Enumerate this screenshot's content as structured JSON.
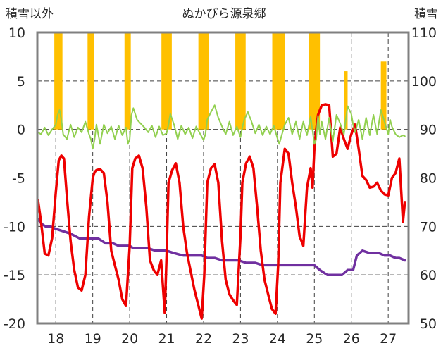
{
  "chart_data": {
    "type": "line+bar",
    "title": "ぬかびら源泉郷",
    "left_axis_label": "積雪以外",
    "right_axis_label": "積雪",
    "x_tick_labels": [
      "18",
      "19",
      "20",
      "21",
      "22",
      "23",
      "24",
      "25",
      "26",
      "27"
    ],
    "xlim": [
      17.5,
      27.55
    ],
    "left_ylim": [
      -20,
      10
    ],
    "left_ticks": [
      10,
      5,
      0,
      -5,
      -10,
      -15,
      -20
    ],
    "right_ylim": [
      50,
      110
    ],
    "right_ticks": [
      110,
      100,
      90,
      80,
      70,
      60,
      50
    ],
    "colors": {
      "temperature": "#ee0000",
      "snow_depth": "#7030a0",
      "precipitation": "#ffc000",
      "wind": "#92d050"
    },
    "series": [
      {
        "key": "temperature",
        "axis": "left",
        "x": [
          17.52,
          17.6,
          17.7,
          17.8,
          17.9,
          18.0,
          18.08,
          18.15,
          18.22,
          18.3,
          18.4,
          18.5,
          18.6,
          18.7,
          18.8,
          18.9,
          19.0,
          19.05,
          19.1,
          19.2,
          19.3,
          19.4,
          19.5,
          19.6,
          19.7,
          19.8,
          19.9,
          20.0,
          20.07,
          20.15,
          20.25,
          20.35,
          20.45,
          20.55,
          20.65,
          20.75,
          20.85,
          20.95,
          21.0,
          21.05,
          21.15,
          21.25,
          21.35,
          21.45,
          21.55,
          21.65,
          21.75,
          21.85,
          21.95,
          22.02,
          22.1,
          22.2,
          22.3,
          22.4,
          22.5,
          22.6,
          22.7,
          22.8,
          22.9,
          23.0,
          23.05,
          23.15,
          23.25,
          23.35,
          23.45,
          23.55,
          23.65,
          23.75,
          23.85,
          23.95,
          24.02,
          24.08,
          24.2,
          24.3,
          24.4,
          24.5,
          24.6,
          24.7,
          24.8,
          24.9,
          24.95,
          25.0,
          25.05,
          25.1,
          25.2,
          25.3,
          25.4,
          25.5,
          25.6,
          25.7,
          25.8,
          25.9,
          26.0,
          26.1,
          26.2,
          26.3,
          26.4,
          26.5,
          26.6,
          26.7,
          26.8,
          26.9,
          27.0,
          27.1,
          27.2,
          27.3,
          27.4,
          27.45
        ],
        "y": [
          -7.3,
          -9.5,
          -12.8,
          -13.0,
          -11.2,
          -6.5,
          -3.2,
          -2.7,
          -3.0,
          -7.0,
          -11.5,
          -14.5,
          -16.3,
          -16.6,
          -15.0,
          -9.0,
          -5.0,
          -4.4,
          -4.2,
          -4.1,
          -4.5,
          -7.5,
          -12.5,
          -14.0,
          -15.5,
          -17.5,
          -18.2,
          -12.0,
          -4.0,
          -3.0,
          -2.7,
          -4.0,
          -8.0,
          -13.5,
          -14.5,
          -15.0,
          -13.5,
          -18.9,
          -13.0,
          -5.5,
          -4.2,
          -3.5,
          -5.5,
          -10.0,
          -12.7,
          -14.6,
          -16.5,
          -18.0,
          -19.5,
          -15.0,
          -5.5,
          -4.0,
          -3.6,
          -5.5,
          -11.5,
          -15.5,
          -17.0,
          -17.6,
          -18.1,
          -11.0,
          -5.5,
          -3.5,
          -2.8,
          -4.0,
          -8.0,
          -12.5,
          -15.5,
          -17.0,
          -18.5,
          -19.0,
          -14.0,
          -5.5,
          -2.0,
          -2.5,
          -5.5,
          -8.0,
          -11.0,
          -12.0,
          -6.0,
          -4.0,
          -6.0,
          -2.0,
          0.0,
          1.5,
          2.5,
          2.6,
          2.5,
          -2.8,
          -2.5,
          0.2,
          -1.0,
          -2.0,
          -0.5,
          0.5,
          -2.0,
          -4.8,
          -5.2,
          -6.0,
          -5.9,
          -5.5,
          -6.3,
          -6.7,
          -6.8,
          -5.0,
          -4.5,
          -3.0,
          -9.5,
          -7.5
        ]
      },
      {
        "key": "snow_depth",
        "axis": "right",
        "x": [
          17.52,
          17.62,
          17.72,
          17.85,
          18.0,
          18.2,
          18.4,
          18.65,
          18.9,
          19.0,
          19.15,
          19.35,
          19.55,
          19.7,
          19.9,
          20.0,
          20.1,
          20.3,
          20.5,
          20.7,
          20.9,
          21.0,
          21.2,
          21.45,
          21.7,
          21.95,
          22.1,
          22.3,
          22.5,
          22.7,
          22.95,
          23.15,
          23.4,
          23.6,
          23.85,
          24.05,
          24.2,
          24.45,
          24.65,
          24.85,
          25.0,
          25.15,
          25.35,
          25.55,
          25.75,
          25.9,
          26.05,
          26.15,
          26.3,
          26.5,
          26.75,
          26.9,
          27.05,
          27.2,
          27.3,
          27.45
        ],
        "y": [
          71.5,
          70.5,
          70.0,
          70.0,
          69.5,
          69.0,
          68.5,
          67.5,
          67.5,
          67.5,
          67.5,
          66.5,
          66.5,
          66.0,
          66.0,
          66.0,
          65.5,
          65.5,
          65.5,
          65.0,
          65.0,
          65.0,
          64.5,
          64.0,
          64.0,
          64.0,
          63.5,
          63.5,
          63.0,
          63.0,
          63.0,
          62.5,
          62.5,
          62.0,
          62.0,
          62.0,
          62.0,
          62.0,
          62.0,
          62.0,
          62.0,
          61.0,
          60.0,
          60.0,
          60.0,
          61.0,
          61.0,
          64.0,
          65.0,
          64.5,
          64.5,
          64.0,
          64.0,
          63.5,
          63.5,
          63.0
        ]
      },
      {
        "key": "wind",
        "axis": "left",
        "x": [
          17.52,
          17.6,
          17.7,
          17.8,
          17.9,
          18.0,
          18.05,
          18.1,
          18.15,
          18.2,
          18.3,
          18.4,
          18.5,
          18.6,
          18.7,
          18.8,
          18.9,
          18.95,
          19.0,
          19.05,
          19.1,
          19.2,
          19.3,
          19.4,
          19.5,
          19.6,
          19.7,
          19.8,
          19.9,
          19.95,
          20.0,
          20.05,
          20.1,
          20.2,
          20.3,
          20.4,
          20.5,
          20.6,
          20.7,
          20.8,
          20.9,
          21.0,
          21.05,
          21.1,
          21.2,
          21.3,
          21.4,
          21.5,
          21.6,
          21.7,
          21.8,
          21.9,
          22.0,
          22.05,
          22.1,
          22.2,
          22.3,
          22.4,
          22.5,
          22.6,
          22.7,
          22.8,
          22.9,
          23.0,
          23.05,
          23.1,
          23.2,
          23.3,
          23.4,
          23.5,
          23.6,
          23.7,
          23.8,
          23.9,
          24.0,
          24.05,
          24.1,
          24.2,
          24.3,
          24.4,
          24.5,
          24.6,
          24.7,
          24.8,
          24.9,
          25.0,
          25.05,
          25.1,
          25.15,
          25.2,
          25.3,
          25.4,
          25.5,
          25.6,
          25.7,
          25.8,
          25.9,
          26.0,
          26.05,
          26.1,
          26.2,
          26.3,
          26.4,
          26.5,
          26.6,
          26.7,
          26.8,
          26.9,
          27.0,
          27.05,
          27.1,
          27.2,
          27.3,
          27.4,
          27.45
        ],
        "y": [
          -0.3,
          -0.5,
          0.2,
          -0.6,
          0.0,
          0.5,
          1.5,
          2.0,
          1.0,
          -0.5,
          -1.0,
          0.5,
          -0.8,
          0.2,
          -0.3,
          0.8,
          -0.5,
          -1.0,
          -2.0,
          -1.0,
          0.5,
          -1.5,
          0.5,
          -0.4,
          0.3,
          -1.0,
          0.4,
          -0.6,
          0.2,
          -1.5,
          -1.0,
          1.5,
          2.2,
          1.0,
          0.6,
          0.2,
          -0.3,
          0.4,
          -0.8,
          0.3,
          -0.6,
          -0.4,
          0.5,
          1.6,
          0.5,
          -1.0,
          0.4,
          -0.5,
          0.2,
          -0.9,
          0.3,
          -0.4,
          -1.1,
          -0.5,
          1.0,
          1.8,
          2.5,
          1.2,
          0.3,
          -0.5,
          0.8,
          -0.6,
          0.3,
          -0.8,
          0.2,
          1.0,
          1.8,
          0.8,
          -0.4,
          0.5,
          -0.6,
          0.3,
          -0.5,
          0.4,
          -0.9,
          -1.5,
          -0.8,
          0.5,
          1.2,
          -0.5,
          0.8,
          -1.0,
          0.8,
          -0.6,
          1.3,
          -1.5,
          -1.0,
          1.4,
          -0.5,
          0.8,
          -1.0,
          1.2,
          -1.2,
          1.5,
          0.6,
          -0.5,
          2.4,
          1.6,
          0.5,
          -0.3,
          1.0,
          -1.0,
          1.2,
          -0.6,
          1.5,
          -0.5,
          2.0,
          0.8,
          -0.5,
          1.0,
          0.3,
          -0.5,
          -0.8,
          -0.6,
          -0.7
        ]
      },
      {
        "key": "precipitation",
        "axis": "left",
        "type": "bar",
        "segments": [
          {
            "from": 17.96,
            "to": 18.18,
            "value": 10
          },
          {
            "from": 18.86,
            "to": 19.04,
            "value": 10
          },
          {
            "from": 19.86,
            "to": 20.03,
            "value": 10
          },
          {
            "from": 20.86,
            "to": 21.14,
            "value": 10
          },
          {
            "from": 21.86,
            "to": 22.14,
            "value": 10
          },
          {
            "from": 22.86,
            "to": 23.14,
            "value": 10
          },
          {
            "from": 23.86,
            "to": 24.2,
            "value": 10
          },
          {
            "from": 24.86,
            "to": 25.15,
            "value": 10
          },
          {
            "from": 25.8,
            "to": 25.9,
            "value": 6.0
          },
          {
            "from": 26.8,
            "to": 26.95,
            "value": 7.0
          }
        ]
      }
    ],
    "grid": {
      "vertical_dashed": true,
      "horizontal_dashed": true
    },
    "legend": "none"
  }
}
